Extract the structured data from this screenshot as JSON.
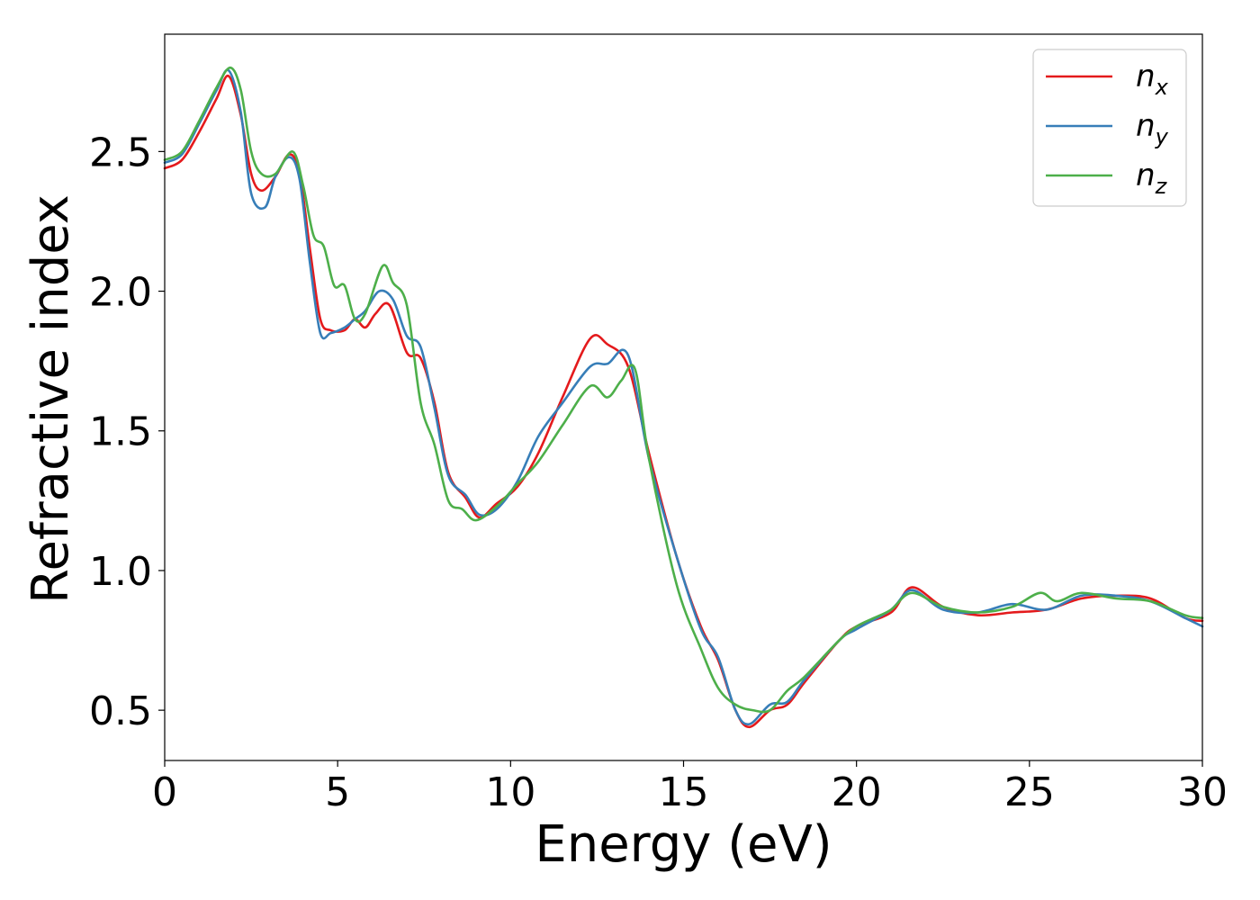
{
  "chart_data": {
    "type": "line",
    "xlabel": "Energy (eV)",
    "ylabel": "Refractive index",
    "xlim": [
      0,
      30
    ],
    "ylim": [
      0.32,
      2.92
    ],
    "xticks": [
      0,
      5,
      10,
      15,
      20,
      25,
      30
    ],
    "xtick_labels": [
      "0",
      "5",
      "10",
      "15",
      "20",
      "25",
      "30"
    ],
    "yticks": [
      0.5,
      1.0,
      1.5,
      2.0,
      2.5
    ],
    "ytick_labels": [
      "0.5",
      "1.0",
      "1.5",
      "2.0",
      "2.5"
    ],
    "grid": false,
    "legend_position": "top-right",
    "series": [
      {
        "name": "n",
        "subscript": "x",
        "color": "#e41a1c",
        "x": [
          0,
          0.5,
          1,
          1.5,
          1.85,
          2.2,
          2.5,
          2.8,
          3.2,
          3.6,
          3.9,
          4.2,
          4.5,
          4.8,
          5.2,
          5.5,
          5.8,
          6.1,
          6.5,
          7,
          7.4,
          7.8,
          8.2,
          8.7,
          9.1,
          9.6,
          10.2,
          10.8,
          11.5,
          12.3,
          12.8,
          13.4,
          14,
          14.8,
          15.5,
          16,
          16.5,
          16.9,
          17.5,
          18,
          18.5,
          19.5,
          20,
          21,
          21.6,
          22.5,
          23.5,
          24.5,
          25.5,
          26.5,
          27.5,
          28.5,
          29.5,
          30
        ],
        "y": [
          2.44,
          2.47,
          2.57,
          2.69,
          2.77,
          2.63,
          2.42,
          2.36,
          2.41,
          2.49,
          2.42,
          2.15,
          1.9,
          1.86,
          1.86,
          1.9,
          1.87,
          1.92,
          1.95,
          1.78,
          1.76,
          1.6,
          1.35,
          1.26,
          1.19,
          1.24,
          1.3,
          1.42,
          1.62,
          1.83,
          1.81,
          1.73,
          1.42,
          1.05,
          0.8,
          0.68,
          0.5,
          0.44,
          0.5,
          0.52,
          0.6,
          0.75,
          0.8,
          0.85,
          0.94,
          0.87,
          0.84,
          0.85,
          0.86,
          0.9,
          0.91,
          0.9,
          0.83,
          0.82
        ]
      },
      {
        "name": "n",
        "subscript": "y",
        "color": "#377eb8",
        "x": [
          0,
          0.5,
          1,
          1.5,
          1.85,
          2.2,
          2.5,
          2.9,
          3.2,
          3.6,
          3.9,
          4.2,
          4.5,
          4.8,
          5.2,
          5.5,
          5.8,
          6.2,
          6.6,
          7,
          7.4,
          7.8,
          8.2,
          8.7,
          9.1,
          9.6,
          10.2,
          10.8,
          11.5,
          12.3,
          12.8,
          13.4,
          14,
          14.8,
          15.5,
          16,
          16.5,
          16.9,
          17.5,
          18,
          18.5,
          19.5,
          20,
          21,
          21.6,
          22.5,
          23.5,
          24.5,
          25.5,
          26.5,
          27.5,
          28.5,
          29.5,
          30
        ],
        "y": [
          2.46,
          2.49,
          2.6,
          2.72,
          2.79,
          2.64,
          2.35,
          2.3,
          2.41,
          2.48,
          2.4,
          2.1,
          1.85,
          1.85,
          1.87,
          1.9,
          1.93,
          2.0,
          1.97,
          1.84,
          1.8,
          1.58,
          1.34,
          1.27,
          1.2,
          1.22,
          1.32,
          1.48,
          1.6,
          1.73,
          1.74,
          1.77,
          1.4,
          1.05,
          0.79,
          0.69,
          0.5,
          0.45,
          0.52,
          0.53,
          0.61,
          0.75,
          0.79,
          0.86,
          0.93,
          0.86,
          0.85,
          0.88,
          0.86,
          0.91,
          0.91,
          0.89,
          0.83,
          0.8
        ]
      },
      {
        "name": "n",
        "subscript": "z",
        "color": "#4daf4a",
        "x": [
          0,
          0.5,
          1,
          1.5,
          1.9,
          2.2,
          2.5,
          2.8,
          3.2,
          3.7,
          4,
          4.3,
          4.6,
          4.9,
          5.2,
          5.5,
          5.8,
          6.3,
          6.6,
          7,
          7.4,
          7.8,
          8.2,
          8.6,
          9,
          9.6,
          10.2,
          10.8,
          11.5,
          12.3,
          12.8,
          13.2,
          13.6,
          14,
          14.8,
          15.5,
          16,
          16.5,
          17,
          17.5,
          18,
          18.5,
          19.5,
          20,
          20.5,
          21,
          21.6,
          22.5,
          23.5,
          24.5,
          25.3,
          25.8,
          26.5,
          27.5,
          28.5,
          29.5,
          30
        ],
        "y": [
          2.47,
          2.5,
          2.61,
          2.73,
          2.8,
          2.72,
          2.5,
          2.42,
          2.42,
          2.5,
          2.38,
          2.2,
          2.16,
          2.02,
          2.02,
          1.9,
          1.92,
          2.09,
          2.03,
          1.95,
          1.6,
          1.45,
          1.25,
          1.22,
          1.18,
          1.23,
          1.31,
          1.39,
          1.52,
          1.66,
          1.62,
          1.68,
          1.72,
          1.4,
          0.95,
          0.72,
          0.58,
          0.52,
          0.5,
          0.5,
          0.57,
          0.62,
          0.75,
          0.8,
          0.83,
          0.86,
          0.92,
          0.87,
          0.85,
          0.87,
          0.92,
          0.89,
          0.92,
          0.9,
          0.89,
          0.84,
          0.83
        ]
      }
    ]
  }
}
